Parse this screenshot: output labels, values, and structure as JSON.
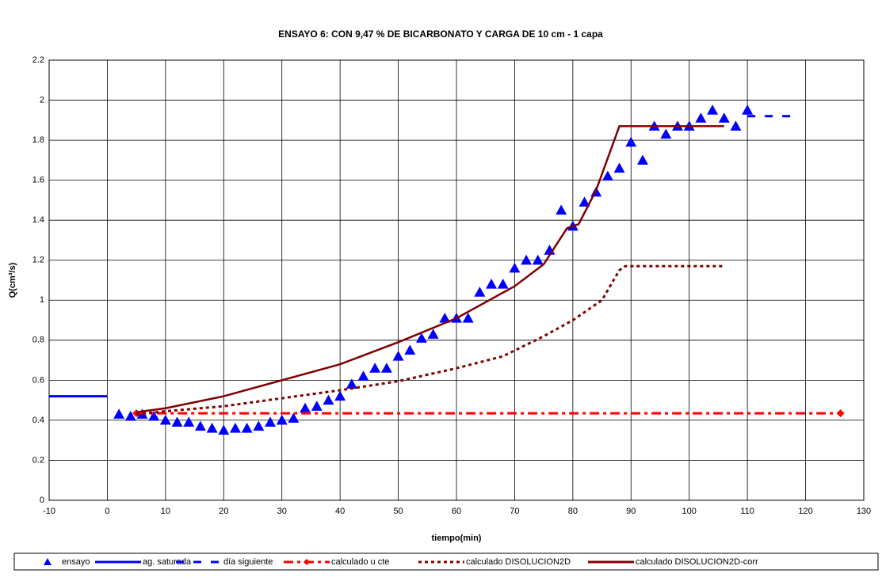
{
  "chart_data": {
    "type": "line",
    "title": "ENSAYO 6: CON 9,47 % DE BICARBONATO Y CARGA DE 10 cm - 1 capa",
    "xlabel": "tiempo(min)",
    "ylabel": "Q(cm³/s)",
    "xlim": [
      -10,
      130
    ],
    "xticks": [
      -10,
      0,
      10,
      20,
      30,
      40,
      50,
      60,
      70,
      80,
      90,
      100,
      110,
      120,
      130
    ],
    "ylim": [
      0,
      2.2
    ],
    "yticks": [
      0,
      0.2,
      0.4,
      0.6,
      0.8,
      1,
      1.2,
      1.4,
      1.6,
      1.8,
      2,
      2.2
    ],
    "grid": true,
    "legend": "bottom",
    "series": [
      {
        "name": "ensayo",
        "color": "#0000ff",
        "marker": "triangle",
        "line": "none",
        "x": [
          2,
          4,
          6,
          8,
          10,
          12,
          14,
          16,
          18,
          20,
          22,
          24,
          26,
          28,
          30,
          32,
          34,
          36,
          38,
          40,
          42,
          44,
          46,
          48,
          50,
          52,
          54,
          56,
          58,
          60,
          62,
          64,
          66,
          68,
          70,
          72,
          74,
          76,
          78,
          80,
          82,
          84,
          86,
          88,
          90,
          92,
          94,
          96,
          98,
          100,
          102,
          104,
          106,
          108,
          110
        ],
        "values": [
          0.43,
          0.42,
          0.43,
          0.42,
          0.4,
          0.39,
          0.39,
          0.37,
          0.36,
          0.35,
          0.36,
          0.36,
          0.37,
          0.39,
          0.4,
          0.41,
          0.46,
          0.47,
          0.5,
          0.52,
          0.58,
          0.62,
          0.66,
          0.66,
          0.72,
          0.75,
          0.81,
          0.83,
          0.91,
          0.91,
          0.91,
          1.04,
          1.08,
          1.08,
          1.16,
          1.2,
          1.2,
          1.25,
          1.45,
          1.37,
          1.49,
          1.54,
          1.62,
          1.66,
          1.79,
          1.7,
          1.87,
          1.83,
          1.87,
          1.87,
          1.91,
          1.95,
          1.91,
          1.87,
          1.95
        ]
      },
      {
        "name": "ag. saturada",
        "color": "#0000ff",
        "line": "solid",
        "x": [
          -10,
          0
        ],
        "values": [
          0.52,
          0.52
        ]
      },
      {
        "name": "día siguiente",
        "color": "#0000ff",
        "line": "dash",
        "x": [
          110,
          118
        ],
        "values": [
          1.92,
          1.92
        ]
      },
      {
        "name": "calculado u cte",
        "color": "#ff0000",
        "line": "dashdot",
        "marker": "diamond",
        "x": [
          5,
          126
        ],
        "values": [
          0.435,
          0.435
        ]
      },
      {
        "name": "calculado DISOLUCION2D",
        "color": "#800000",
        "line": "dot",
        "x": [
          5,
          10,
          20,
          30,
          40,
          50,
          60,
          68,
          75,
          80,
          85,
          88,
          89,
          106
        ],
        "values": [
          0.43,
          0.445,
          0.47,
          0.51,
          0.55,
          0.595,
          0.66,
          0.72,
          0.82,
          0.9,
          1.0,
          1.15,
          1.17,
          1.17
        ]
      },
      {
        "name": "calculado DISOLUCION2D-corr",
        "color": "#800000",
        "line": "solid",
        "x": [
          5,
          10,
          20,
          30,
          40,
          50,
          60,
          70,
          75,
          79,
          81,
          84,
          88,
          106
        ],
        "values": [
          0.44,
          0.46,
          0.52,
          0.6,
          0.68,
          0.79,
          0.91,
          1.07,
          1.18,
          1.36,
          1.38,
          1.55,
          1.87,
          1.87
        ]
      }
    ]
  }
}
